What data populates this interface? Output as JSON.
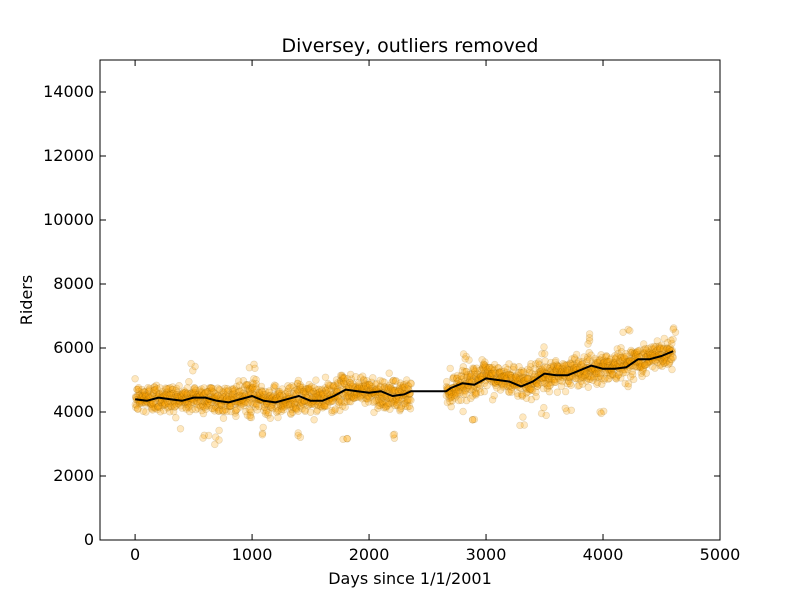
{
  "chart_data": {
    "type": "scatter",
    "title": "Diversey, outliers removed",
    "xlabel": "Days since 1/1/2001",
    "ylabel": "Riders",
    "xlim": [
      -300,
      5000
    ],
    "ylim": [
      0,
      15000
    ],
    "xticks": [
      0,
      1000,
      2000,
      3000,
      4000,
      5000
    ],
    "yticks": [
      0,
      2000,
      4000,
      6000,
      8000,
      10000,
      12000,
      14000
    ],
    "grid": false,
    "legend": "none",
    "series": [
      {
        "kind": "scatter",
        "color": "#ffa500",
        "opacity": 0.25,
        "x_range": [
          0,
          4600
        ],
        "gap": [
          2360,
          2660
        ],
        "trend_points": [
          [
            0,
            4400
          ],
          [
            200,
            4450
          ],
          [
            400,
            4400
          ],
          [
            600,
            4450
          ],
          [
            800,
            4350
          ],
          [
            1000,
            4500
          ],
          [
            1200,
            4350
          ],
          [
            1400,
            4450
          ],
          [
            1600,
            4400
          ],
          [
            1800,
            4700
          ],
          [
            2000,
            4650
          ],
          [
            2200,
            4500
          ],
          [
            2360,
            4550
          ],
          [
            2660,
            4600
          ],
          [
            2800,
            4900
          ],
          [
            3000,
            5100
          ],
          [
            3200,
            5000
          ],
          [
            3400,
            4950
          ],
          [
            3600,
            5200
          ],
          [
            3800,
            5300
          ],
          [
            4000,
            5400
          ],
          [
            4200,
            5500
          ],
          [
            4400,
            5700
          ],
          [
            4600,
            5900
          ]
        ],
        "outliers_low": [
          [
            600,
            3200
          ],
          [
            700,
            3100
          ],
          [
            1000,
            3800
          ],
          [
            1100,
            3400
          ],
          [
            1400,
            3300
          ],
          [
            1800,
            3200
          ],
          [
            2200,
            3300
          ],
          [
            2900,
            3700
          ],
          [
            3300,
            3700
          ],
          [
            3500,
            4000
          ],
          [
            3700,
            4000
          ],
          [
            4000,
            4100
          ]
        ],
        "outliers_high": [
          [
            500,
            5400
          ],
          [
            1000,
            5350
          ],
          [
            2800,
            5700
          ],
          [
            3500,
            5900
          ],
          [
            3900,
            6300
          ],
          [
            4200,
            6500
          ],
          [
            4600,
            6600
          ]
        ]
      },
      {
        "kind": "line",
        "color": "#000000",
        "points": [
          [
            0,
            4400
          ],
          [
            100,
            4350
          ],
          [
            200,
            4450
          ],
          [
            300,
            4400
          ],
          [
            400,
            4350
          ],
          [
            500,
            4450
          ],
          [
            600,
            4450
          ],
          [
            700,
            4350
          ],
          [
            800,
            4300
          ],
          [
            900,
            4400
          ],
          [
            1000,
            4500
          ],
          [
            1100,
            4350
          ],
          [
            1200,
            4300
          ],
          [
            1300,
            4400
          ],
          [
            1400,
            4500
          ],
          [
            1500,
            4350
          ],
          [
            1600,
            4350
          ],
          [
            1700,
            4500
          ],
          [
            1800,
            4700
          ],
          [
            1900,
            4650
          ],
          [
            2000,
            4600
          ],
          [
            2100,
            4650
          ],
          [
            2200,
            4500
          ],
          [
            2300,
            4550
          ],
          [
            2360,
            4650
          ],
          [
            2660,
            4650
          ],
          [
            2700,
            4750
          ],
          [
            2800,
            4900
          ],
          [
            2900,
            4850
          ],
          [
            3000,
            5050
          ],
          [
            3100,
            5000
          ],
          [
            3200,
            4950
          ],
          [
            3300,
            4800
          ],
          [
            3400,
            4950
          ],
          [
            3500,
            5200
          ],
          [
            3600,
            5150
          ],
          [
            3700,
            5150
          ],
          [
            3800,
            5300
          ],
          [
            3900,
            5450
          ],
          [
            4000,
            5350
          ],
          [
            4100,
            5350
          ],
          [
            4200,
            5400
          ],
          [
            4300,
            5650
          ],
          [
            4400,
            5650
          ],
          [
            4500,
            5750
          ],
          [
            4600,
            5900
          ]
        ]
      }
    ]
  }
}
